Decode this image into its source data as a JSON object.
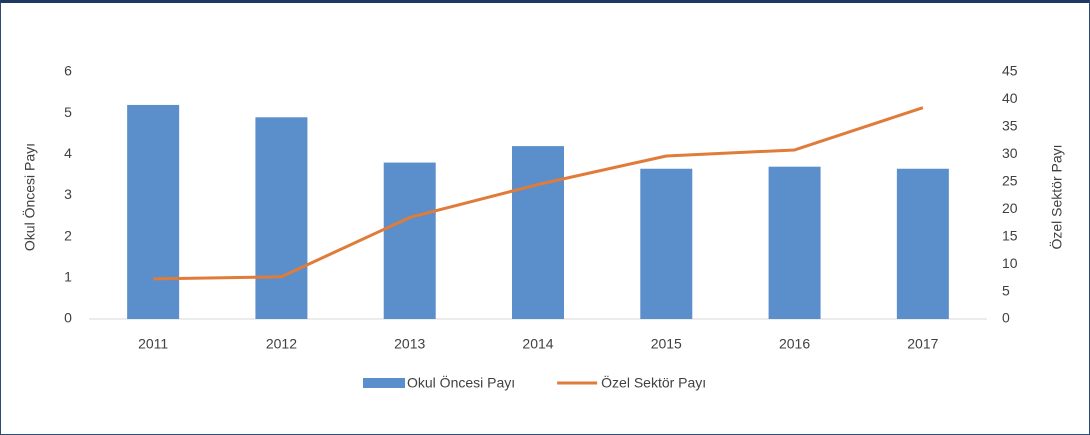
{
  "chart_data": {
    "type": "combo",
    "categories": [
      "2011",
      "2012",
      "2013",
      "2014",
      "2015",
      "2016",
      "2017"
    ],
    "series": [
      {
        "name": "Okul Öncesi Payı",
        "type": "bar",
        "color": "#5b8fcc",
        "values": [
          5.2,
          4.9,
          3.8,
          4.2,
          3.65,
          3.7,
          3.65
        ]
      },
      {
        "name": "Özel Sektör Payı",
        "type": "line",
        "axis": "y2",
        "color": "#e07b39",
        "values": [
          7.3,
          7.7,
          18.5,
          24.5,
          29.7,
          30.8,
          38.5
        ]
      }
    ],
    "ylabel": "Okul Öncesi Payı",
    "y2label": "Özel Sektör Payı",
    "ylim": [
      0,
      6
    ],
    "yticks": [
      0,
      1,
      2,
      3,
      4,
      5,
      6
    ],
    "y2lim": [
      0,
      45
    ],
    "y2ticks": [
      0,
      5,
      10,
      15,
      20,
      25,
      30,
      35,
      40,
      45
    ],
    "grid": false,
    "legend": "bottom"
  }
}
